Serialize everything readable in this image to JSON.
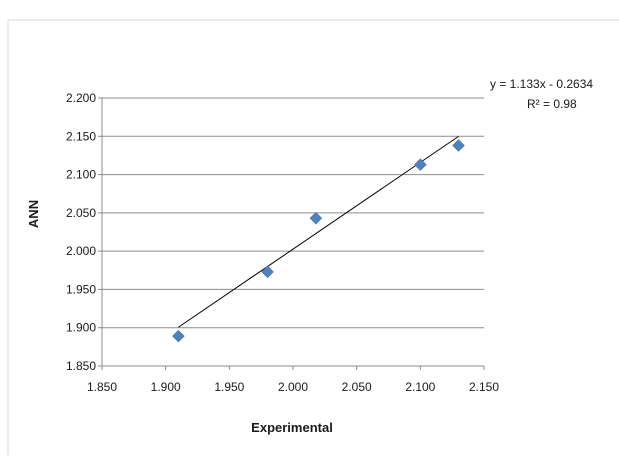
{
  "chart_data": {
    "type": "scatter",
    "title": "",
    "xlabel": "Experimental",
    "ylabel": "ANN",
    "xlim": [
      1.85,
      2.15
    ],
    "ylim": [
      1.85,
      2.2
    ],
    "xticks": [
      "1.850",
      "1.900",
      "1.950",
      "2.000",
      "2.050",
      "2.100",
      "2.150"
    ],
    "yticks": [
      "1.850",
      "1.900",
      "1.950",
      "2.000",
      "2.050",
      "2.100",
      "2.150",
      "2.200"
    ],
    "grid": "horizontal",
    "series": [
      {
        "color": "#4f81bd",
        "marker": "diamond",
        "points": [
          {
            "x": 1.91,
            "y": 1.889
          },
          {
            "x": 1.98,
            "y": 1.973
          },
          {
            "x": 2.018,
            "y": 2.043
          },
          {
            "x": 2.1,
            "y": 2.113
          },
          {
            "x": 2.13,
            "y": 2.138
          }
        ]
      }
    ],
    "trendline": {
      "slope": 1.133,
      "intercept": -0.2634,
      "x_range": [
        1.91,
        2.13
      ],
      "color": "#000000"
    },
    "annotations": {
      "equation": "y = 1.133x - 0.2634",
      "r2_label": "R² = 0.98"
    }
  }
}
